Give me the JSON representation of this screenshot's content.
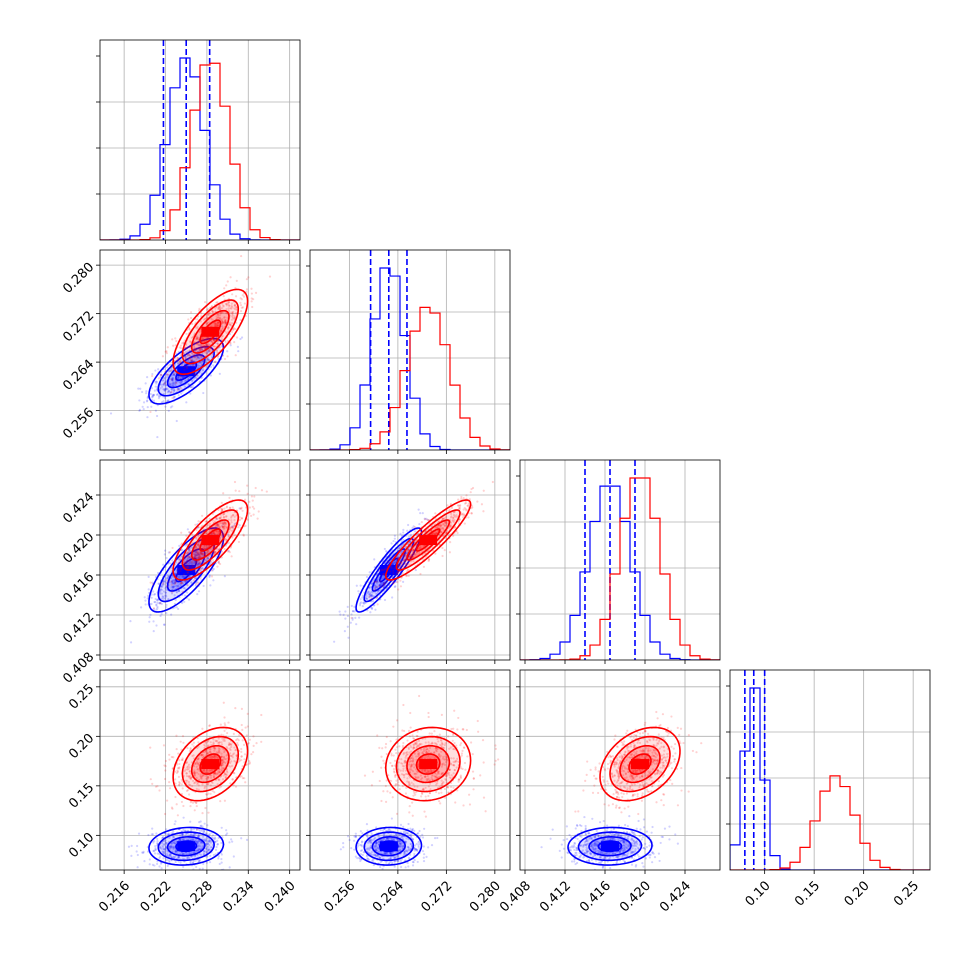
{
  "chart_data": {
    "type": "corner",
    "grid": true,
    "parameters": [
      {
        "ticks": [
          "0.216",
          "0.222",
          "0.228",
          "0.234",
          "0.240"
        ],
        "lim": [
          0.2125,
          0.2415
        ]
      },
      {
        "ticks": [
          "0.256",
          "0.264",
          "0.272",
          "0.280"
        ],
        "lim": [
          0.2495,
          0.2825
        ]
      },
      {
        "ticks": [
          "0.408",
          "0.412",
          "0.416",
          "0.420",
          "0.424"
        ],
        "lim": [
          0.4075,
          0.4275
        ]
      },
      {
        "ticks": [
          "0.10",
          "0.15",
          "0.20",
          "0.25"
        ],
        "lim": [
          0.065,
          0.267
        ]
      }
    ],
    "series": [
      {
        "color": "#0000ff",
        "mean": [
          0.225,
          0.2625,
          0.4165,
          0.089
        ],
        "std": [
          0.0027,
          0.0027,
          0.0021,
          0.0095
        ],
        "quantiles": [
          [
            0.2217,
            0.225,
            0.2284
          ],
          [
            0.2595,
            0.2625,
            0.2655
          ],
          [
            0.414,
            0.4165,
            0.419
          ],
          [
            0.08,
            0.089,
            0.1
          ]
        ],
        "correlation": [
          [
            1,
            0.72,
            0.76,
            0.1
          ],
          [
            0.72,
            1,
            0.9,
            0.05
          ],
          [
            0.76,
            0.9,
            1,
            0.05
          ],
          [
            0.1,
            0.05,
            0.05,
            1
          ]
        ]
      },
      {
        "color": "#ff0000",
        "mean": [
          0.2285,
          0.269,
          0.4195,
          0.172
        ],
        "std": [
          0.0027,
          0.0035,
          0.002,
          0.0185
        ],
        "quantiles": null,
        "correlation": [
          [
            1,
            0.72,
            0.76,
            0.35
          ],
          [
            0.72,
            1,
            0.9,
            0.1
          ],
          [
            0.76,
            0.9,
            1,
            0.35
          ],
          [
            0.35,
            0.1,
            0.35,
            1
          ]
        ]
      }
    ]
  }
}
